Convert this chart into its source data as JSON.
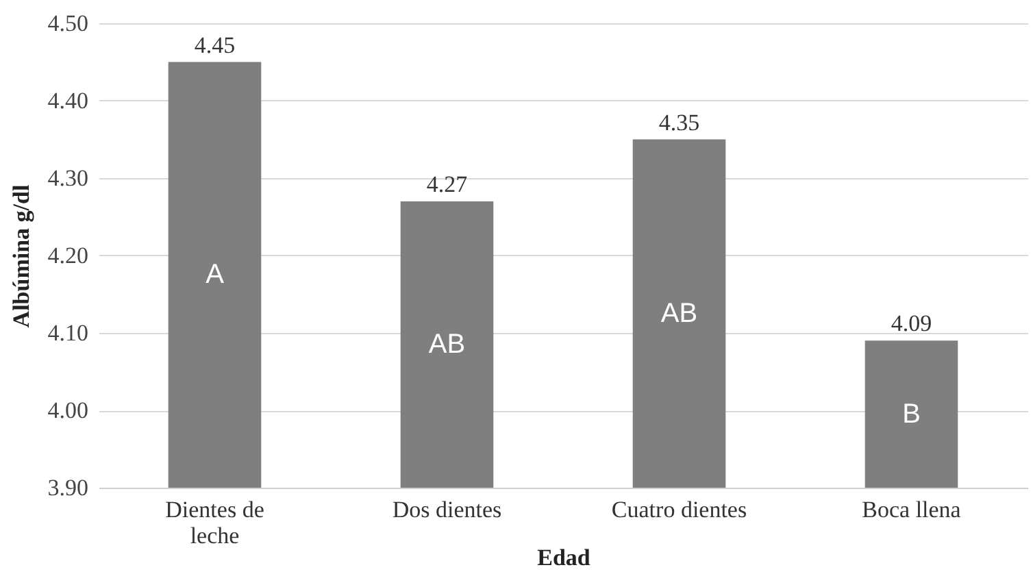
{
  "chart_data": {
    "type": "bar",
    "xlabel": "Edad",
    "ylabel": "Albúmina  g/dl",
    "categories": [
      "Dientes de leche",
      "Dos dientes",
      "Cuatro dientes",
      "Boca llena"
    ],
    "values": [
      4.45,
      4.27,
      4.35,
      4.09
    ],
    "color": "#7f7f7f",
    "ylim": [
      3.9,
      4.5
    ],
    "yticks": [
      {
        "value": 3.9,
        "label": "3.90"
      },
      {
        "value": 4.0,
        "label": "4.00"
      },
      {
        "value": 4.1,
        "label": "4.10"
      },
      {
        "value": 4.2,
        "label": "4.20"
      },
      {
        "value": 4.3,
        "label": "4.30"
      },
      {
        "value": 4.4,
        "label": "4.40"
      },
      {
        "value": 4.5,
        "label": "4.50"
      }
    ],
    "grid": "y",
    "data_labels": true,
    "annotations": [
      "A",
      "AB",
      "AB",
      "B"
    ]
  }
}
